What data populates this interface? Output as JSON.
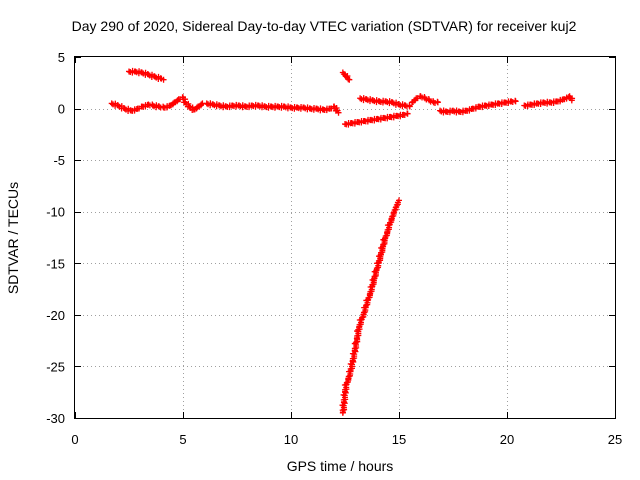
{
  "chart_data": {
    "type": "scatter",
    "title": "Day 290 of 2020, Sidereal Day-to-day VTEC variation (SDTVAR) for receiver kuj2",
    "xlabel": "GPS time / hours",
    "ylabel": "SDTVAR / TECUs",
    "xlim": [
      0,
      25
    ],
    "ylim": [
      -30,
      5
    ],
    "xticks": [
      0,
      5,
      10,
      15,
      20,
      25
    ],
    "yticks": [
      5,
      0,
      -5,
      -10,
      -15,
      -20,
      -25,
      -30
    ],
    "grid": true,
    "marker": "plus",
    "color": "#ff0000",
    "series": [
      {
        "segments": [
          [
            [
              1.7,
              0.5
            ],
            [
              2.0,
              0.3
            ],
            [
              2.3,
              0.0
            ],
            [
              2.6,
              -0.2
            ],
            [
              2.9,
              0.0
            ],
            [
              3.1,
              0.2
            ],
            [
              3.4,
              0.4
            ],
            [
              3.6,
              0.3
            ],
            [
              3.9,
              0.2
            ],
            [
              4.1,
              0.1
            ],
            [
              4.4,
              0.3
            ],
            [
              4.6,
              0.6
            ],
            [
              4.8,
              0.9
            ],
            [
              5.0,
              1.1
            ],
            [
              5.1,
              0.6
            ],
            [
              5.3,
              0.2
            ],
            [
              5.5,
              -0.1
            ],
            [
              5.7,
              0.2
            ],
            [
              5.9,
              0.5
            ]
          ],
          [
            [
              2.5,
              3.6
            ],
            [
              2.8,
              3.6
            ],
            [
              3.1,
              3.5
            ],
            [
              3.4,
              3.3
            ],
            [
              3.7,
              3.1
            ],
            [
              4.0,
              2.9
            ],
            [
              4.1,
              2.8
            ]
          ],
          [
            [
              6.1,
              0.5
            ],
            [
              6.4,
              0.4
            ],
            [
              6.7,
              0.3
            ],
            [
              7.0,
              0.2
            ],
            [
              7.3,
              0.3
            ],
            [
              7.6,
              0.3
            ],
            [
              7.9,
              0.2
            ],
            [
              8.2,
              0.3
            ],
            [
              8.5,
              0.3
            ],
            [
              8.8,
              0.2
            ],
            [
              9.1,
              0.2
            ],
            [
              9.4,
              0.2
            ],
            [
              9.7,
              0.2
            ],
            [
              10.0,
              0.1
            ],
            [
              10.3,
              0.1
            ],
            [
              10.6,
              0.1
            ],
            [
              10.9,
              0.0
            ],
            [
              11.2,
              0.0
            ],
            [
              11.5,
              -0.1
            ],
            [
              11.8,
              0.0
            ],
            [
              12.0,
              0.2
            ],
            [
              12.2,
              -0.4
            ]
          ],
          [
            [
              12.4,
              3.5
            ],
            [
              12.5,
              3.3
            ],
            [
              12.6,
              3.0
            ],
            [
              12.7,
              2.8
            ]
          ],
          [
            [
              13.2,
              1.0
            ],
            [
              13.5,
              0.9
            ],
            [
              13.8,
              0.8
            ],
            [
              14.1,
              0.7
            ],
            [
              14.4,
              0.7
            ],
            [
              14.7,
              0.6
            ],
            [
              15.0,
              0.4
            ],
            [
              15.3,
              0.3
            ],
            [
              15.5,
              0.2
            ]
          ],
          [
            [
              12.5,
              -1.5
            ],
            [
              12.8,
              -1.4
            ],
            [
              13.1,
              -1.3
            ],
            [
              13.4,
              -1.2
            ],
            [
              13.7,
              -1.1
            ],
            [
              14.0,
              -1.0
            ],
            [
              14.3,
              -0.9
            ],
            [
              14.6,
              -0.8
            ],
            [
              14.9,
              -0.7
            ],
            [
              15.2,
              -0.6
            ],
            [
              15.4,
              -0.5
            ]
          ],
          [
            [
              15.6,
              0.6
            ],
            [
              15.8,
              1.0
            ],
            [
              16.0,
              1.2
            ],
            [
              16.2,
              1.0
            ],
            [
              16.4,
              0.8
            ],
            [
              16.6,
              0.6
            ],
            [
              16.8,
              0.6
            ]
          ],
          [
            [
              16.9,
              -0.2
            ],
            [
              17.2,
              -0.3
            ],
            [
              17.5,
              -0.2
            ],
            [
              17.8,
              -0.3
            ],
            [
              18.1,
              -0.2
            ],
            [
              18.4,
              0.0
            ],
            [
              18.7,
              0.2
            ],
            [
              19.0,
              0.3
            ],
            [
              19.3,
              0.4
            ],
            [
              19.6,
              0.5
            ],
            [
              19.9,
              0.6
            ],
            [
              20.2,
              0.7
            ],
            [
              20.4,
              0.7
            ]
          ],
          [
            [
              20.8,
              0.3
            ],
            [
              21.1,
              0.4
            ],
            [
              21.4,
              0.5
            ],
            [
              21.7,
              0.6
            ],
            [
              22.0,
              0.6
            ],
            [
              22.3,
              0.7
            ],
            [
              22.6,
              0.9
            ],
            [
              22.9,
              1.2
            ],
            [
              23.0,
              0.8
            ]
          ],
          [
            [
              12.4,
              -29.5
            ],
            [
              12.45,
              -28.5
            ],
            [
              12.5,
              -27.5
            ],
            [
              12.55,
              -26.8
            ],
            [
              12.65,
              -26.2
            ],
            [
              12.75,
              -25.5
            ],
            [
              12.85,
              -24.5
            ],
            [
              12.95,
              -23.5
            ],
            [
              13.05,
              -22.3
            ],
            [
              13.15,
              -21.2
            ],
            [
              13.25,
              -20.5
            ],
            [
              13.35,
              -20.0
            ],
            [
              13.45,
              -19.3
            ],
            [
              13.55,
              -18.6
            ],
            [
              13.65,
              -18.0
            ],
            [
              13.75,
              -17.3
            ],
            [
              13.85,
              -16.5
            ],
            [
              13.95,
              -15.7
            ],
            [
              14.05,
              -15.0
            ],
            [
              14.15,
              -14.2
            ],
            [
              14.25,
              -13.4
            ],
            [
              14.35,
              -12.6
            ],
            [
              14.45,
              -12.0
            ],
            [
              14.55,
              -11.3
            ],
            [
              14.65,
              -10.7
            ],
            [
              14.75,
              -10.1
            ],
            [
              14.85,
              -9.6
            ],
            [
              14.95,
              -9.1
            ],
            [
              15.0,
              -8.9
            ]
          ]
        ]
      }
    ]
  }
}
